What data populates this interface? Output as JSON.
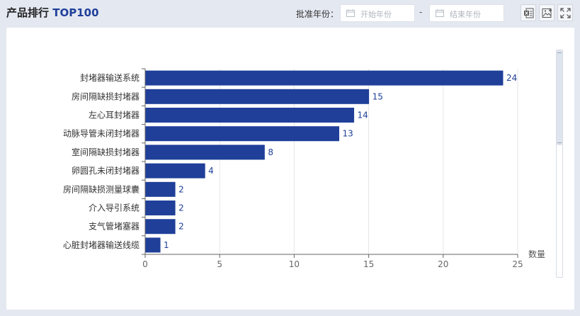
{
  "header": {
    "title_main": "产品排行",
    "title_accent": "TOP100",
    "year_label": "批准年份：",
    "start_placeholder": "开始年份",
    "separator": "-",
    "end_placeholder": "结束年份"
  },
  "toolbar": {
    "excel_icon": "excel-export-icon",
    "image_icon": "image-download-icon",
    "fullscreen_icon": "fullscreen-icon"
  },
  "colors": {
    "bar": "#1f3f99",
    "label": "#1f3f99",
    "axis": "#666666",
    "grid": "#e6e6e6"
  },
  "chart_data": {
    "type": "bar",
    "orientation": "horizontal",
    "categories": [
      "封堵器输送系统",
      "房间隔缺损封堵器",
      "左心耳封堵器",
      "动脉导管未闭封堵器",
      "室间隔缺损封堵器",
      "卵圆孔未闭封堵器",
      "房间隔缺损测量球囊",
      "介入导引系统",
      "支气管堵塞器",
      "心脏封堵器输送线缆"
    ],
    "values": [
      24,
      15,
      14,
      13,
      8,
      4,
      2,
      2,
      2,
      1
    ],
    "xlabel": "数量",
    "ylabel": "",
    "xlim": [
      0,
      25
    ],
    "xticks": [
      0,
      5,
      10,
      15,
      20,
      25
    ],
    "grid": "vertical",
    "data_labels": true
  }
}
